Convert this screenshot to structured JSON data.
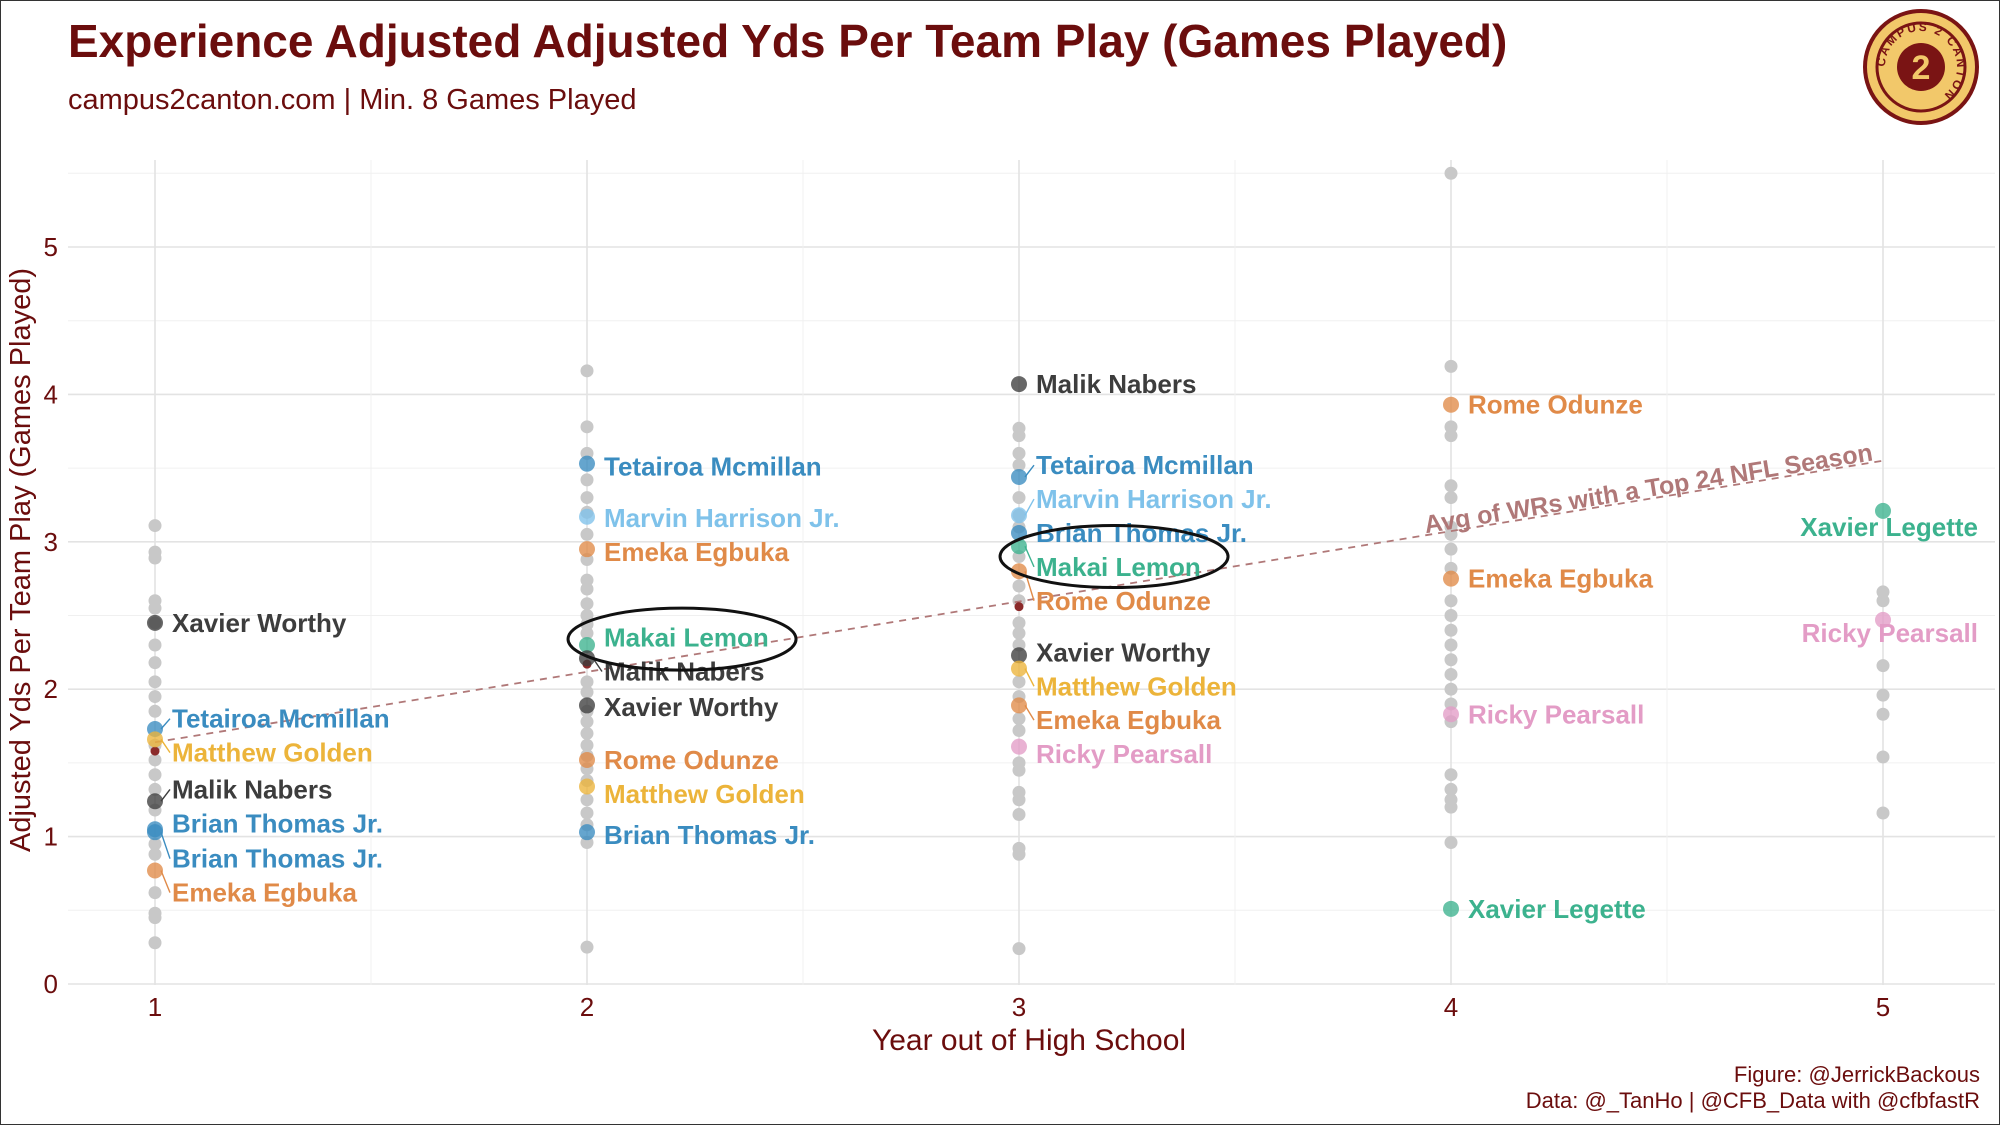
{
  "title": "Experience Adjusted Adjusted Yds Per Team Play (Games Played)",
  "subtitle": "campus2canton.com | Min. 8 Games Played",
  "caption": {
    "figure": "Figure: @JerrickBackous",
    "data": "Data: @_TanHo | @CFB_Data with @cfbfastR"
  },
  "logo": {
    "icon": "campus2canton-logo",
    "text": "CAMPUS 2 CANTON"
  },
  "colors": {
    "title": "#6b0d0d",
    "grey_points": "#c8c8c8",
    "trend": "#b07878",
    "players": {
      "Xavier Worthy": "#3d3d3d",
      "Malik Nabers": "#3d3d3d",
      "Tetairoa Mcmillan": "#3a8cc0",
      "Brian Thomas Jr.": "#3a8cc0",
      "Marvin Harrison Jr.": "#7fc2ea",
      "Matthew Golden": "#ecb43a",
      "Emeka Egbuka": "#e08a48",
      "Rome Odunze": "#e08a48",
      "Makai Lemon": "#3cb28e",
      "Xavier Legette": "#3cb28e",
      "Ricky Pearsall": "#e39cc6"
    }
  },
  "chart_data": {
    "type": "scatter",
    "xlabel": "Year out of High School",
    "ylabel": "Adjusted Yds Per Team Play (Games Played)",
    "xlim": [
      0.8,
      5.25
    ],
    "ylim": [
      0,
      5.6
    ],
    "x_ticks": [
      1,
      2,
      3,
      4,
      5
    ],
    "y_ticks": [
      0,
      1,
      2,
      3,
      4,
      5
    ],
    "grid": true,
    "background_points": [
      {
        "x": 1,
        "y": [
          3.11,
          2.93,
          2.89,
          2.6,
          2.55,
          2.45,
          2.3,
          2.18,
          2.05,
          1.95,
          1.85,
          1.62,
          1.52,
          1.42,
          1.32,
          1.18,
          0.95,
          0.88,
          0.62,
          0.48,
          0.45,
          0.28
        ]
      },
      {
        "x": 2,
        "y": [
          4.16,
          3.78,
          3.6,
          3.42,
          3.3,
          3.2,
          3.05,
          2.88,
          2.74,
          2.68,
          2.58,
          2.5,
          2.44,
          2.38,
          2.05,
          1.98,
          1.85,
          1.78,
          1.7,
          1.62,
          1.55,
          1.46,
          1.38,
          1.25,
          1.16,
          1.08,
          0.96,
          0.25
        ]
      },
      {
        "x": 3,
        "y": [
          3.77,
          3.72,
          3.6,
          3.52,
          3.3,
          3.18,
          3.1,
          2.9,
          2.7,
          2.6,
          2.45,
          2.38,
          2.3,
          2.05,
          1.95,
          1.8,
          1.72,
          1.5,
          1.45,
          1.3,
          1.25,
          1.15,
          0.92,
          0.88,
          0.24
        ]
      },
      {
        "x": 4,
        "y": [
          5.5,
          4.19,
          3.78,
          3.72,
          3.38,
          3.3,
          3.1,
          3.05,
          2.95,
          2.82,
          2.6,
          2.5,
          2.4,
          2.3,
          2.2,
          2.1,
          2.0,
          1.9,
          1.78,
          1.42,
          1.32,
          1.25,
          1.2,
          0.96
        ]
      },
      {
        "x": 5,
        "y": [
          2.66,
          2.6,
          2.16,
          1.96,
          1.83,
          1.54,
          1.16
        ]
      }
    ],
    "small_points": [
      {
        "x": 1,
        "y": 1.58
      },
      {
        "x": 2,
        "y": 2.17
      },
      {
        "x": 3,
        "y": 2.56
      }
    ],
    "highlighted": [
      {
        "player": "Xavier Worthy",
        "x": 1,
        "y": 2.45
      },
      {
        "player": "Tetairoa Mcmillan",
        "x": 1,
        "y": 1.73
      },
      {
        "player": "Matthew Golden",
        "x": 1,
        "y": 1.66
      },
      {
        "player": "Malik Nabers",
        "x": 1,
        "y": 1.24
      },
      {
        "player": "Brian Thomas Jr.",
        "x": 1,
        "y": 1.05
      },
      {
        "player": "Brian Thomas Jr.",
        "x": 1,
        "y": 1.03
      },
      {
        "player": "Emeka Egbuka",
        "x": 1,
        "y": 0.77
      },
      {
        "player": "Tetairoa Mcmillan",
        "x": 2,
        "y": 3.53
      },
      {
        "player": "Marvin Harrison Jr.",
        "x": 2,
        "y": 3.17
      },
      {
        "player": "Emeka Egbuka",
        "x": 2,
        "y": 2.95
      },
      {
        "player": "Makai Lemon",
        "x": 2,
        "y": 2.3
      },
      {
        "player": "Malik Nabers",
        "x": 2,
        "y": 2.21
      },
      {
        "player": "Xavier Worthy",
        "x": 2,
        "y": 1.89
      },
      {
        "player": "Rome Odunze",
        "x": 2,
        "y": 1.52
      },
      {
        "player": "Matthew Golden",
        "x": 2,
        "y": 1.34
      },
      {
        "player": "Brian Thomas Jr.",
        "x": 2,
        "y": 1.03
      },
      {
        "player": "Malik Nabers",
        "x": 3,
        "y": 4.07
      },
      {
        "player": "Tetairoa Mcmillan",
        "x": 3,
        "y": 3.44
      },
      {
        "player": "Marvin Harrison Jr.",
        "x": 3,
        "y": 3.18
      },
      {
        "player": "Brian Thomas Jr.",
        "x": 3,
        "y": 3.06
      },
      {
        "player": "Makai Lemon",
        "x": 3,
        "y": 2.97
      },
      {
        "player": "Rome Odunze",
        "x": 3,
        "y": 2.8
      },
      {
        "player": "Xavier Worthy",
        "x": 3,
        "y": 2.23
      },
      {
        "player": "Matthew Golden",
        "x": 3,
        "y": 2.14
      },
      {
        "player": "Emeka Egbuka",
        "x": 3,
        "y": 1.89
      },
      {
        "player": "Ricky Pearsall",
        "x": 3,
        "y": 1.61
      },
      {
        "player": "Rome Odunze",
        "x": 4,
        "y": 3.93
      },
      {
        "player": "Emeka Egbuka",
        "x": 4,
        "y": 2.75
      },
      {
        "player": "Ricky Pearsall",
        "x": 4,
        "y": 1.83
      },
      {
        "player": "Xavier Legette",
        "x": 4,
        "y": 0.51
      },
      {
        "player": "Xavier Legette",
        "x": 5,
        "y": 3.21
      },
      {
        "player": "Ricky Pearsall",
        "x": 5,
        "y": 2.47
      }
    ],
    "labels": [
      {
        "text": "Xavier Worthy",
        "x": 1,
        "y": 2.45,
        "player": "Xavier Worthy"
      },
      {
        "text": "Tetairoa Mcmillan",
        "x": 1,
        "y": 1.8,
        "player": "Tetairoa Mcmillan"
      },
      {
        "text": "Matthew Golden",
        "x": 1,
        "y": 1.57,
        "player": "Matthew Golden"
      },
      {
        "text": "Malik Nabers",
        "x": 1,
        "y": 1.32,
        "player": "Malik Nabers"
      },
      {
        "text": "Brian Thomas Jr.",
        "x": 1,
        "y": 1.09,
        "player": "Brian Thomas Jr."
      },
      {
        "text": "Brian Thomas Jr.",
        "x": 1,
        "y": 0.85,
        "player": "Brian Thomas Jr."
      },
      {
        "text": "Emeka Egbuka",
        "x": 1,
        "y": 0.62,
        "player": "Emeka Egbuka"
      },
      {
        "text": "Tetairoa Mcmillan",
        "x": 2,
        "y": 3.51,
        "player": "Tetairoa Mcmillan"
      },
      {
        "text": "Marvin Harrison Jr.",
        "x": 2,
        "y": 3.16,
        "player": "Marvin Harrison Jr."
      },
      {
        "text": "Emeka Egbuka",
        "x": 2,
        "y": 2.93,
        "player": "Emeka Egbuka"
      },
      {
        "text": "Makai Lemon",
        "x": 2,
        "y": 2.35,
        "player": "Makai Lemon"
      },
      {
        "text": "Malik Nabers",
        "x": 2,
        "y": 2.12,
        "player": "Malik Nabers"
      },
      {
        "text": "Xavier Worthy",
        "x": 2,
        "y": 1.88,
        "player": "Xavier Worthy"
      },
      {
        "text": "Rome Odunze",
        "x": 2,
        "y": 1.52,
        "player": "Rome Odunze"
      },
      {
        "text": "Matthew Golden",
        "x": 2,
        "y": 1.29,
        "player": "Matthew Golden"
      },
      {
        "text": "Brian Thomas Jr.",
        "x": 2,
        "y": 1.01,
        "player": "Brian Thomas Jr."
      },
      {
        "text": "Malik Nabers",
        "x": 3,
        "y": 4.07,
        "player": "Malik Nabers"
      },
      {
        "text": "Tetairoa Mcmillan",
        "x": 3,
        "y": 3.52,
        "player": "Tetairoa Mcmillan"
      },
      {
        "text": "Marvin Harrison Jr.",
        "x": 3,
        "y": 3.29,
        "player": "Marvin Harrison Jr."
      },
      {
        "text": "Brian Thomas Jr.",
        "x": 3,
        "y": 3.06,
        "player": "Brian Thomas Jr."
      },
      {
        "text": "Makai Lemon",
        "x": 3,
        "y": 2.83,
        "player": "Makai Lemon"
      },
      {
        "text": "Rome Odunze",
        "x": 3,
        "y": 2.6,
        "player": "Rome Odunze"
      },
      {
        "text": "Xavier Worthy",
        "x": 3,
        "y": 2.25,
        "player": "Xavier Worthy"
      },
      {
        "text": "Matthew Golden",
        "x": 3,
        "y": 2.02,
        "player": "Matthew Golden"
      },
      {
        "text": "Emeka Egbuka",
        "x": 3,
        "y": 1.79,
        "player": "Emeka Egbuka"
      },
      {
        "text": "Ricky Pearsall",
        "x": 3,
        "y": 1.56,
        "player": "Ricky Pearsall"
      },
      {
        "text": "Rome Odunze",
        "x": 4,
        "y": 3.93,
        "player": "Rome Odunze"
      },
      {
        "text": "Emeka Egbuka",
        "x": 4,
        "y": 2.75,
        "player": "Emeka Egbuka"
      },
      {
        "text": "Ricky Pearsall",
        "x": 4,
        "y": 1.83,
        "player": "Ricky Pearsall"
      },
      {
        "text": "Xavier Legette",
        "x": 4,
        "y": 0.51,
        "player": "Xavier Legette"
      },
      {
        "text": "Xavier Legette",
        "x": 5,
        "y": 3.1,
        "player": "Xavier Legette"
      },
      {
        "text": "Ricky Pearsall",
        "x": 5,
        "y": 2.38,
        "player": "Ricky Pearsall"
      }
    ],
    "highlight_ellipses": [
      {
        "x": 2.22,
        "y": 2.34,
        "label_ref": "Makai Lemon"
      },
      {
        "x": 3.22,
        "y": 2.9,
        "label_ref": "Makai Lemon"
      }
    ],
    "trend_line": {
      "label": "Avg of WRs with a Top 24 NFL Season",
      "x": [
        1,
        5
      ],
      "y": [
        1.64,
        3.55
      ],
      "style": "dashed"
    }
  }
}
